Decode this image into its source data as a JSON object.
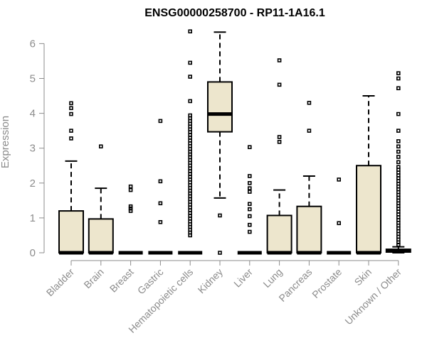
{
  "chart_data": {
    "type": "boxplot",
    "title": "ENSG00000258700 - RP11-1A16.1",
    "ylabel": "Expression",
    "xlabel": "",
    "ylim": [
      0,
      6.4
    ],
    "yticks": [
      0,
      1,
      2,
      3,
      4,
      5,
      6
    ],
    "grid": false,
    "box_color": "#ede6cd",
    "axis_color": "#8c8c8c",
    "categories": [
      "Bladder",
      "Brain",
      "Breast",
      "Gastric",
      "Hematopoietic cells",
      "Kidney",
      "Liver",
      "Lung",
      "Pancreas",
      "Prostate",
      "Skin",
      "Unknown / Other"
    ],
    "boxes": [
      {
        "category": "Bladder",
        "q1": 0,
        "median": 0,
        "q3": 1.2,
        "whisker_low": 0,
        "whisker_high": 2.63,
        "outliers": [
          3.28,
          3.5,
          3.98,
          4.15,
          4.29
        ]
      },
      {
        "category": "Brain",
        "q1": 0,
        "median": 0,
        "q3": 0.97,
        "whisker_low": 0,
        "whisker_high": 1.85,
        "outliers": [
          3.05
        ]
      },
      {
        "category": "Breast",
        "q1": 0,
        "median": 0,
        "q3": 0,
        "whisker_low": 0,
        "whisker_high": 0,
        "outliers": [
          1.2,
          1.27,
          1.33,
          1.8,
          1.9
        ]
      },
      {
        "category": "Gastric",
        "q1": 0,
        "median": 0,
        "q3": 0,
        "whisker_low": 0,
        "whisker_high": 0,
        "outliers": [
          0.88,
          1.42,
          2.05,
          3.78
        ]
      },
      {
        "category": "Hematopoietic cells",
        "q1": 0,
        "median": 0,
        "q3": 0,
        "whisker_low": 0,
        "whisker_high": 0,
        "outliers": [
          0.5,
          0.58,
          0.66,
          0.74,
          0.82,
          0.9,
          0.98,
          1.06,
          1.14,
          1.22,
          1.3,
          1.38,
          1.46,
          1.54,
          1.62,
          1.7,
          1.78,
          1.86,
          1.94,
          2.02,
          2.1,
          2.18,
          2.26,
          2.34,
          2.42,
          2.5,
          2.58,
          2.66,
          2.74,
          2.82,
          2.9,
          2.98,
          3.06,
          3.14,
          3.22,
          3.3,
          3.38,
          3.46,
          3.54,
          3.62,
          3.7,
          3.78,
          3.86,
          3.94,
          4.35,
          5.05,
          5.45,
          6.35
        ]
      },
      {
        "category": "Kidney",
        "q1": 3.47,
        "median": 3.98,
        "q3": 4.9,
        "whisker_low": 1.57,
        "whisker_high": 6.33,
        "outliers": [
          1.07,
          0
        ]
      },
      {
        "category": "Liver",
        "q1": 0,
        "median": 0,
        "q3": 0,
        "whisker_low": 0,
        "whisker_high": 0,
        "outliers": [
          0.6,
          0.8,
          1.05,
          1.25,
          1.4,
          1.75,
          1.85,
          2.0,
          2.2,
          3.03
        ]
      },
      {
        "category": "Lung",
        "q1": 0,
        "median": 0,
        "q3": 1.07,
        "whisker_low": 0,
        "whisker_high": 1.8,
        "outliers": [
          3.18,
          3.32,
          4.82,
          5.52
        ]
      },
      {
        "category": "Pancreas",
        "q1": 0,
        "median": 0,
        "q3": 1.33,
        "whisker_low": 0,
        "whisker_high": 2.2,
        "outliers": [
          3.5,
          4.3
        ]
      },
      {
        "category": "Prostate",
        "q1": 0,
        "median": 0,
        "q3": 0,
        "whisker_low": 0,
        "whisker_high": 0,
        "outliers": [
          0.85,
          2.1
        ]
      },
      {
        "category": "Skin",
        "q1": 0,
        "median": 0,
        "q3": 2.5,
        "whisker_low": 0,
        "whisker_high": 4.5,
        "outliers": []
      },
      {
        "category": "Unknown / Other",
        "q1": 0.02,
        "median": 0.05,
        "q3": 0.1,
        "whisker_low": 0,
        "whisker_high": 0.17,
        "outliers": [
          0.23,
          0.3,
          0.38,
          0.46,
          0.54,
          0.62,
          0.7,
          0.78,
          0.86,
          0.94,
          1.02,
          1.1,
          1.18,
          1.26,
          1.34,
          1.42,
          1.5,
          1.58,
          1.66,
          1.74,
          1.82,
          1.9,
          1.98,
          2.06,
          2.14,
          2.22,
          2.3,
          2.38,
          2.46,
          2.6,
          2.75,
          2.9,
          3.05,
          3.2,
          3.5,
          3.98,
          4.72,
          5.0,
          5.15
        ]
      }
    ]
  }
}
